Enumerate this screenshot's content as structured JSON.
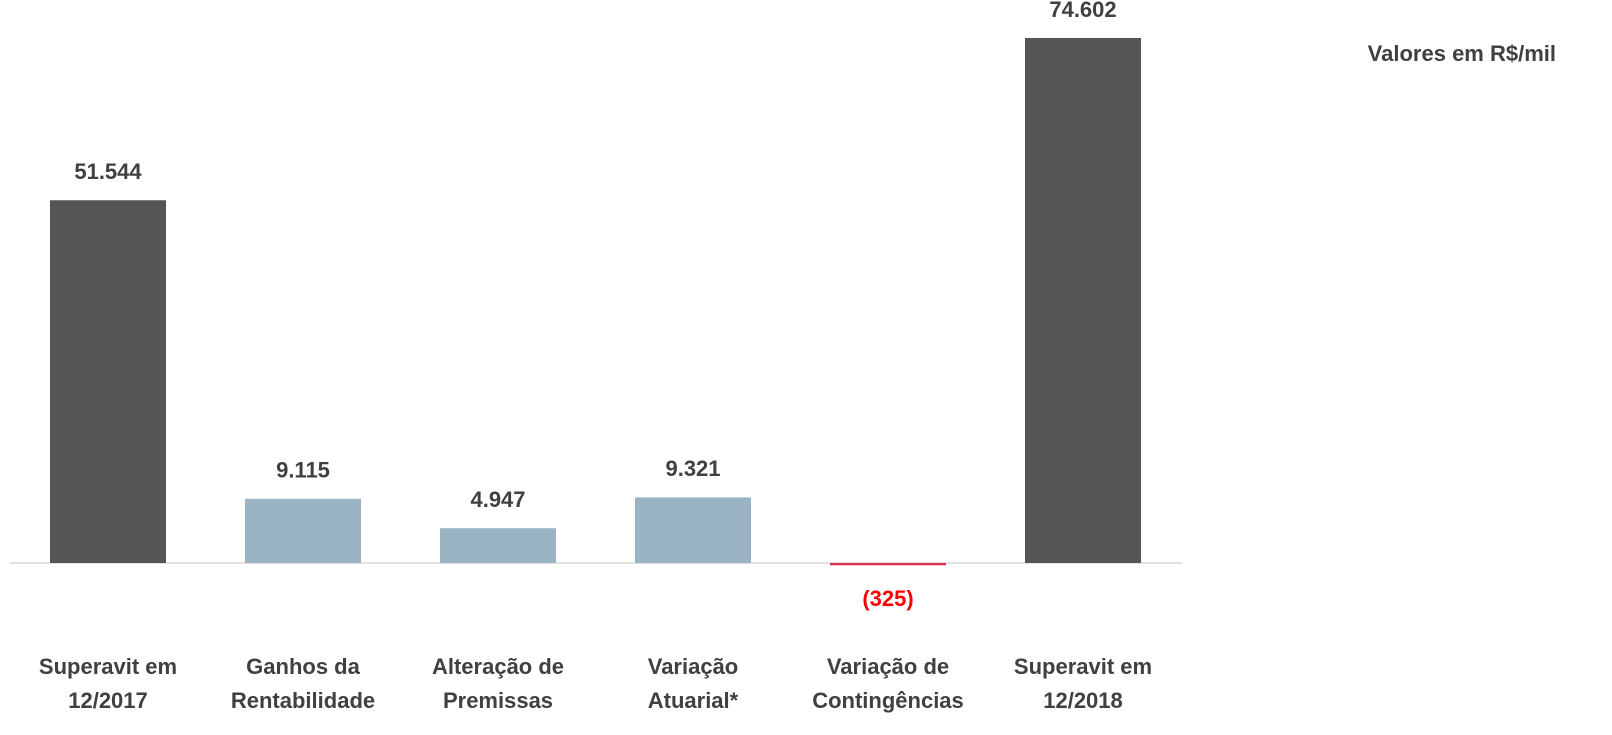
{
  "chart_data": {
    "type": "bar",
    "note": "Valores em R$/mil",
    "categories": [
      [
        "Superavit em",
        "12/2017"
      ],
      [
        "Ganhos da",
        "Rentabilidade"
      ],
      [
        "Alteração de",
        "Premissas"
      ],
      [
        "Variação",
        "Atuarial*"
      ],
      [
        "Variação de",
        "Contingências"
      ],
      [
        "Superavit em",
        "12/2018"
      ]
    ],
    "values": [
      51544,
      9115,
      4947,
      9321,
      -325,
      74602
    ],
    "value_labels": [
      "51.544",
      "9.115",
      "4.947",
      "9.321",
      "(325)",
      "74.602"
    ],
    "colors": [
      "#555558",
      "#9bb4c4",
      "#9bb4c4",
      "#9bb4c4",
      "#e0304f",
      "#555558"
    ],
    "label_colors": [
      "#404040",
      "#404040",
      "#404040",
      "#404040",
      "#ff0000",
      "#404040"
    ]
  }
}
